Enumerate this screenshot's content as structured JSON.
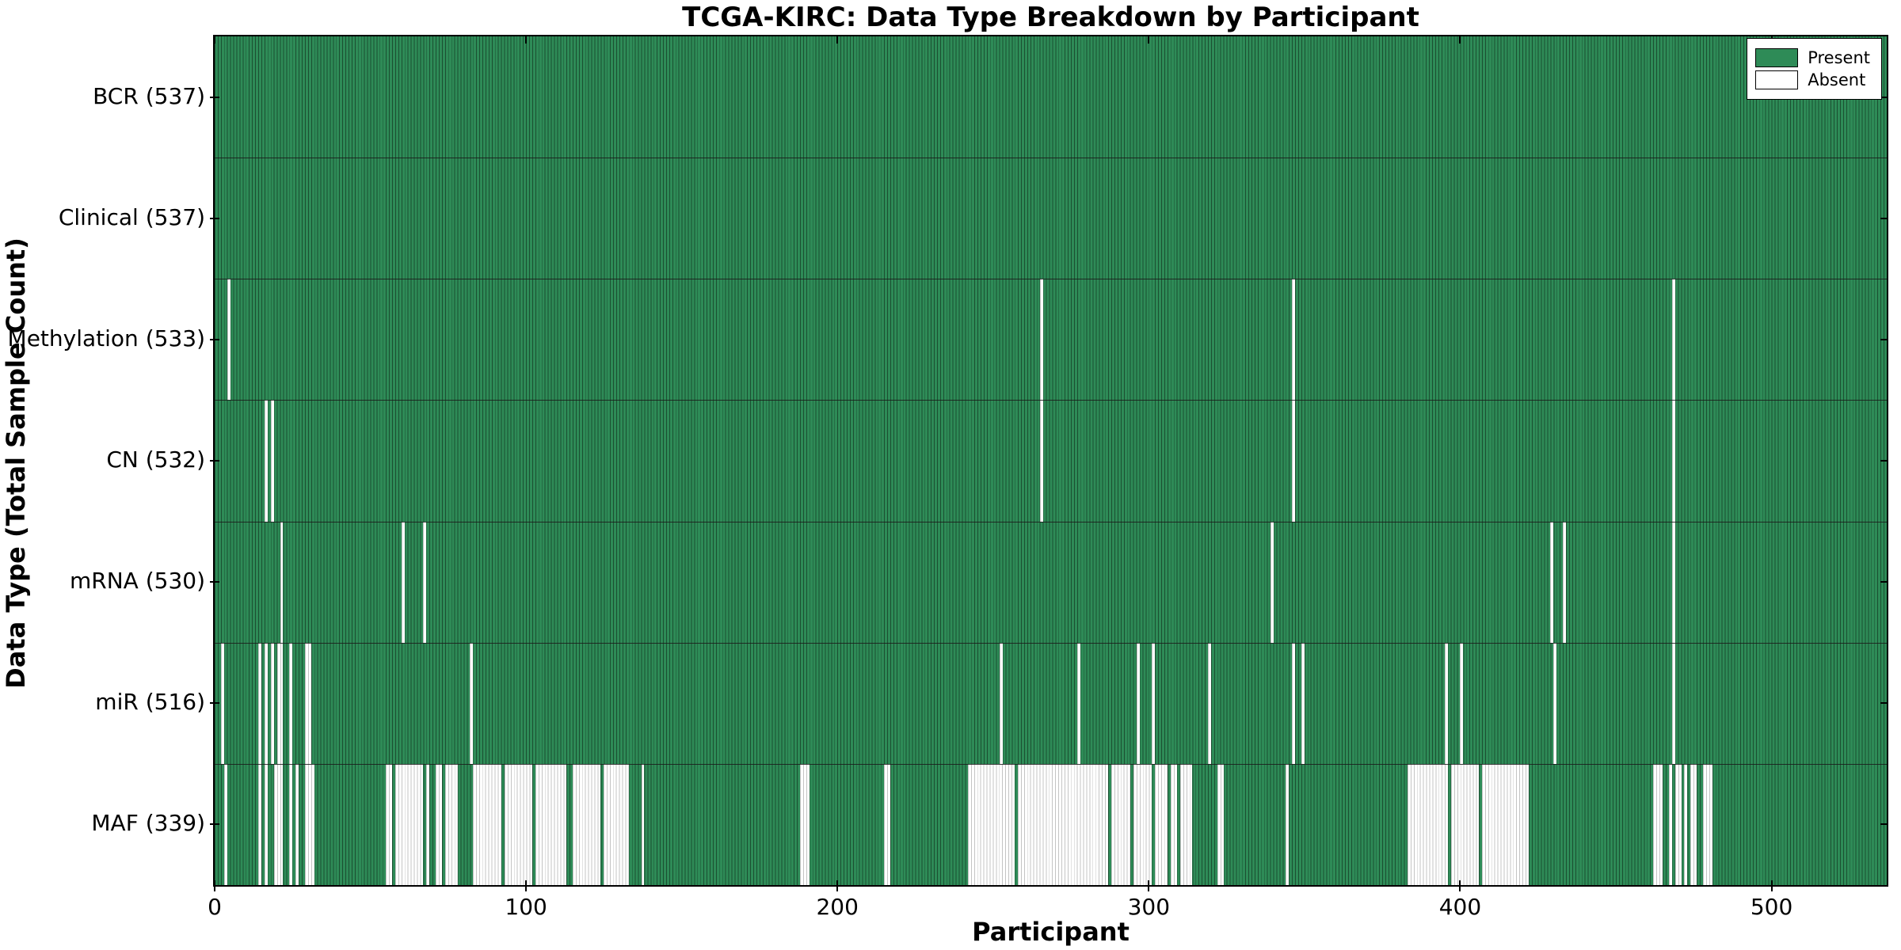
{
  "title": "TCGA-KIRC: Data Type Breakdown by Participant",
  "axes": {
    "xlabel": "Participant",
    "ylabel": "Data Type (Total Sample Count)",
    "x_ticks": [
      0,
      100,
      200,
      300,
      400,
      500
    ]
  },
  "legend": {
    "present_label": "Present",
    "absent_label": "Absent"
  },
  "colors": {
    "present": "#2e8b57",
    "present_edge": "#1b4f31",
    "absent": "#ffffff",
    "absent_edge": "#c4c4c4",
    "frame": "#000000",
    "divider": "#1a1a1a"
  },
  "chart_data": {
    "type": "heatmap",
    "title": "TCGA-KIRC: Data Type Breakdown by Participant",
    "xlabel": "Participant",
    "ylabel": "Data Type (Total Sample Count)",
    "x_range": [
      0,
      537
    ],
    "n_participants": 537,
    "legend_entries": [
      "Present",
      "Absent"
    ],
    "rows": [
      {
        "label": "BCR",
        "count": 537,
        "display": "BCR (537)",
        "absent": [],
        "absent_ranges": []
      },
      {
        "label": "Clinical",
        "count": 537,
        "display": "Clinical (537)",
        "absent": [],
        "absent_ranges": []
      },
      {
        "label": "Methylation",
        "count": 533,
        "display": "Methylation (533)",
        "absent": [
          4,
          265,
          346,
          468
        ],
        "absent_ranges": []
      },
      {
        "label": "CN",
        "count": 532,
        "display": "CN (532)",
        "absent": [
          16,
          18,
          265,
          346,
          468
        ],
        "absent_ranges": []
      },
      {
        "label": "mRNA",
        "count": 530,
        "display": "mRNA (530)",
        "absent": [
          21,
          60,
          67,
          339,
          429,
          433,
          468
        ],
        "absent_ranges": []
      },
      {
        "label": "miR",
        "count": 516,
        "display": "miR (516)",
        "absent": [
          2,
          14,
          16,
          18,
          20,
          21,
          24,
          29,
          30,
          82,
          252,
          277,
          296,
          301,
          319,
          346,
          349,
          395,
          400,
          430,
          468
        ],
        "absent_ranges": []
      },
      {
        "label": "MAF",
        "count": 339,
        "display": "MAF (339)",
        "absent": [],
        "absent_ranges": [
          [
            3,
            3
          ],
          [
            14,
            14
          ],
          [
            16,
            16
          ],
          [
            19,
            21
          ],
          [
            24,
            24
          ],
          [
            26,
            26
          ],
          [
            29,
            31
          ],
          [
            55,
            56
          ],
          [
            58,
            66
          ],
          [
            68,
            68
          ],
          [
            71,
            72
          ],
          [
            74,
            77
          ],
          [
            83,
            91
          ],
          [
            93,
            101
          ],
          [
            103,
            112
          ],
          [
            115,
            123
          ],
          [
            125,
            132
          ],
          [
            137,
            137
          ],
          [
            188,
            190
          ],
          [
            215,
            216
          ],
          [
            242,
            256
          ],
          [
            258,
            286
          ],
          [
            288,
            293
          ],
          [
            295,
            300
          ],
          [
            302,
            305
          ],
          [
            307,
            308
          ],
          [
            310,
            313
          ],
          [
            322,
            323
          ],
          [
            344,
            344
          ],
          [
            383,
            395
          ],
          [
            397,
            405
          ],
          [
            407,
            421
          ],
          [
            462,
            464
          ],
          [
            467,
            467
          ],
          [
            469,
            470
          ],
          [
            472,
            472
          ],
          [
            474,
            475
          ],
          [
            478,
            480
          ]
        ]
      }
    ]
  }
}
